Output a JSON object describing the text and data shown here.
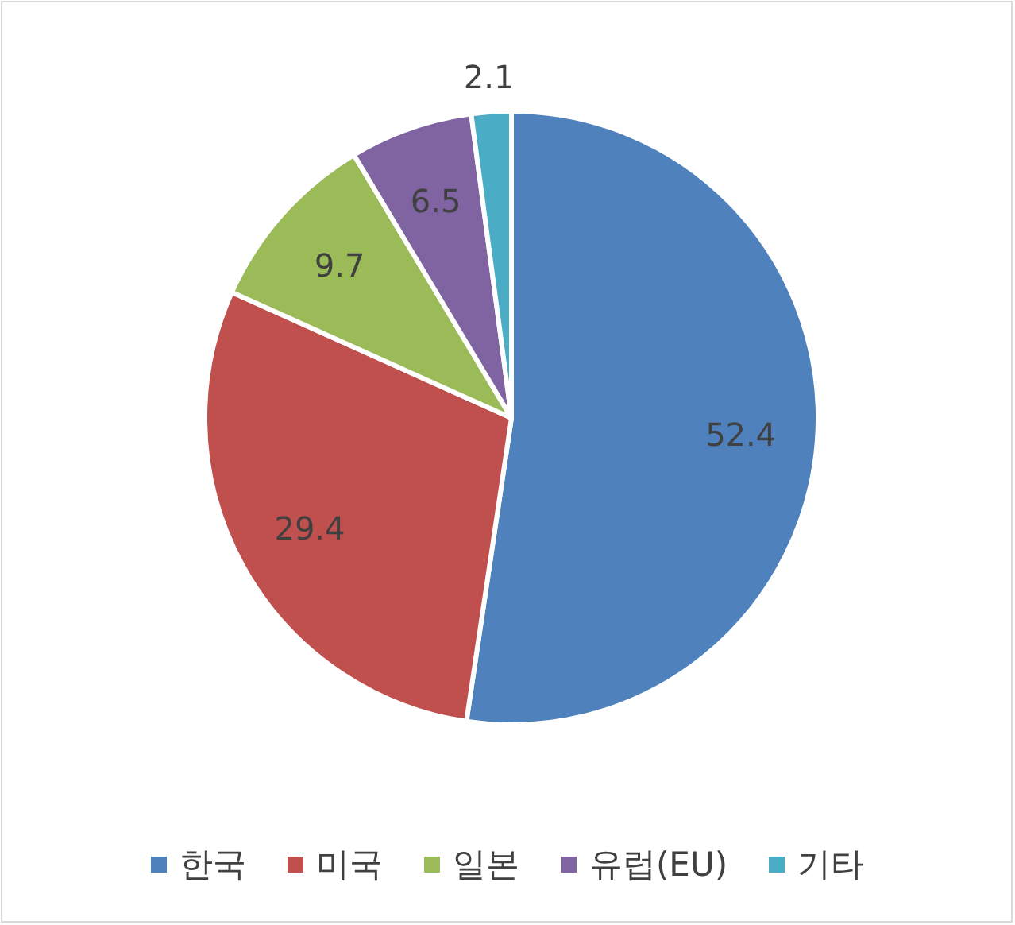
{
  "chart_data": {
    "type": "pie",
    "categories": [
      "한국",
      "미국",
      "일본",
      "유럽(EU)",
      "기타"
    ],
    "values": [
      52.4,
      29.4,
      9.7,
      6.5,
      2.1
    ],
    "colors": [
      "#4f81bd",
      "#c0504d",
      "#9bbb59",
      "#8064a2",
      "#4bacc6"
    ],
    "data_labels": true,
    "legend": "bottom"
  }
}
